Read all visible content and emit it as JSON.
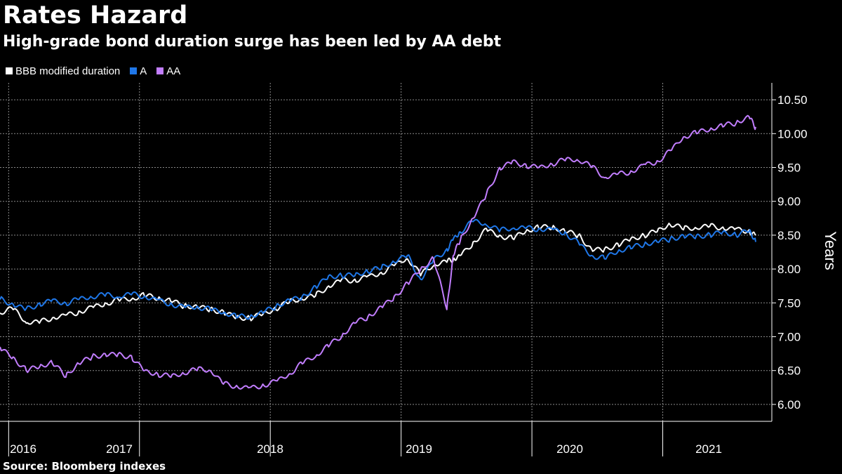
{
  "header": {
    "title": "Rates Hazard",
    "subtitle": "High-grade bond duration surge has been led by AA debt"
  },
  "source": "Source: Bloomberg indexes",
  "chart_data": {
    "type": "line",
    "title": "Rates Hazard",
    "subtitle": "High-grade bond duration surge has been led by AA debt",
    "xlabel": "",
    "ylabel": "Years",
    "ylim": [
      5.75,
      10.75
    ],
    "yticks": [
      "6.00",
      "6.50",
      "7.00",
      "7.50",
      "8.00",
      "8.50",
      "9.00",
      "9.50",
      "10.00",
      "10.50"
    ],
    "xlim": [
      2015.95,
      2021.85
    ],
    "year_labels": [
      {
        "label": "2016",
        "x": 2016.15
      },
      {
        "label": "2017",
        "x": 2016.55
      },
      {
        "label": "2018",
        "x": 2017.55
      },
      {
        "label": "2019",
        "x": 2018.55
      },
      {
        "label": "2020",
        "x": 2019.55
      },
      {
        "label": "2021",
        "x": 2020.5
      }
    ],
    "year_boundaries": [
      2016.0,
      2017.0,
      2018.0,
      2019.0,
      2020.0,
      2021.0
    ],
    "grid": true,
    "legend_position": "top-left",
    "x": [
      2016.0,
      2016.1,
      2016.2,
      2016.3,
      2016.4,
      2016.5,
      2016.6,
      2016.7,
      2016.8,
      2016.9,
      2017.0,
      2017.1,
      2017.2,
      2017.3,
      2017.4,
      2017.5,
      2017.6,
      2017.7,
      2017.8,
      2017.9,
      2018.0,
      2018.1,
      2018.2,
      2018.3,
      2018.4,
      2018.5,
      2018.6,
      2018.7,
      2018.8,
      2018.9,
      2019.0,
      2019.1,
      2019.2,
      2019.3,
      2019.4,
      2019.45,
      2019.5,
      2019.6,
      2019.7,
      2019.8,
      2019.9,
      2020.0,
      2020.1,
      2020.2,
      2020.3,
      2020.4,
      2020.5,
      2020.6,
      2020.7,
      2020.8,
      2020.9,
      2021.0,
      2021.1,
      2021.2,
      2021.3,
      2021.4,
      2021.5,
      2021.6,
      2021.7,
      2021.75
    ],
    "series": [
      {
        "name": "BBB modified duration",
        "color": "#ffffff",
        "values": [
          7.35,
          7.4,
          7.2,
          7.2,
          7.28,
          7.32,
          7.38,
          7.45,
          7.5,
          7.55,
          7.55,
          7.6,
          7.55,
          7.52,
          7.45,
          7.45,
          7.42,
          7.38,
          7.3,
          7.28,
          7.33,
          7.4,
          7.5,
          7.55,
          7.6,
          7.75,
          7.85,
          7.85,
          7.9,
          7.95,
          8.05,
          8.15,
          7.9,
          8.05,
          8.1,
          8.15,
          8.2,
          8.4,
          8.6,
          8.5,
          8.45,
          8.55,
          8.6,
          8.6,
          8.55,
          8.5,
          8.3,
          8.3,
          8.38,
          8.45,
          8.5,
          8.55,
          8.65,
          8.58,
          8.6,
          8.63,
          8.62,
          8.6,
          8.58,
          8.5
        ]
      },
      {
        "name": "A",
        "color": "#1f77e8",
        "values": [
          7.55,
          7.48,
          7.42,
          7.5,
          7.55,
          7.5,
          7.55,
          7.58,
          7.6,
          7.58,
          7.62,
          7.6,
          7.55,
          7.5,
          7.45,
          7.45,
          7.4,
          7.35,
          7.28,
          7.28,
          7.35,
          7.45,
          7.55,
          7.6,
          7.75,
          7.9,
          7.9,
          7.9,
          7.95,
          8.0,
          8.1,
          8.2,
          7.85,
          8.15,
          8.3,
          8.45,
          8.55,
          8.7,
          8.65,
          8.55,
          8.6,
          8.6,
          8.6,
          8.6,
          8.55,
          8.4,
          8.2,
          8.15,
          8.25,
          8.3,
          8.35,
          8.4,
          8.45,
          8.5,
          8.5,
          8.52,
          8.55,
          8.5,
          8.55,
          8.4
        ]
      },
      {
        "name": "AA",
        "color": "#c27eff",
        "values": [
          6.85,
          6.7,
          6.5,
          6.55,
          6.6,
          6.4,
          6.6,
          6.7,
          6.75,
          6.75,
          6.72,
          6.5,
          6.45,
          6.4,
          6.45,
          6.5,
          6.5,
          6.3,
          6.28,
          6.25,
          6.3,
          6.35,
          6.45,
          6.6,
          6.7,
          6.85,
          7.0,
          7.2,
          7.3,
          7.45,
          7.6,
          7.8,
          8.0,
          8.15,
          7.4,
          8.2,
          8.4,
          8.75,
          9.1,
          9.5,
          9.6,
          9.55,
          9.5,
          9.55,
          9.6,
          9.6,
          9.5,
          9.35,
          9.4,
          9.45,
          9.55,
          9.6,
          9.75,
          9.95,
          10.0,
          10.05,
          10.1,
          10.15,
          10.25,
          10.1
        ]
      }
    ]
  }
}
